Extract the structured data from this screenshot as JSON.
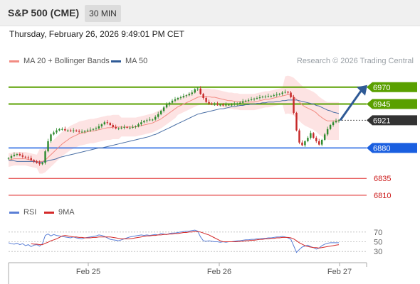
{
  "header": {
    "title": "S&P 500 (CME)",
    "timeframe_label": "30 MIN"
  },
  "timestamp": "Thursday, February 26, 2026 9:49:01 PM CET",
  "legend": {
    "ma20_label": "MA 20 + Bollinger Bands",
    "ma50_label": "MA 50"
  },
  "credit": "Research © 2026 Trading Central",
  "rsi_legend": {
    "rsi_label": "RSI",
    "ma_label": "9MA"
  },
  "colors": {
    "green": "#5aa000",
    "blue": "#1a5fe0",
    "dark": "#333333",
    "red": "#e03030",
    "band": "#fde3e3",
    "ma20": "#f28b82",
    "ma50": "#4a6fa5",
    "rsi": "#5b7fd6",
    "rsi_ma": "#d42a2a",
    "candle_up": "#2e8b2e",
    "candle_down": "#c62828"
  },
  "chart_data": [
    {
      "type": "candlestick",
      "title": "S&P 500 (CME) 30 MIN",
      "ylim": [
        6790,
        6995
      ],
      "x_ticks": [
        "Feb 25",
        "Feb 26",
        "Feb 27"
      ],
      "levels": [
        {
          "value": 6970,
          "label": "6970",
          "style": "green-line"
        },
        {
          "value": 6945,
          "label": "6945",
          "style": "green-line"
        },
        {
          "value": 6921,
          "label": "6921",
          "style": "current-price"
        },
        {
          "value": 6880,
          "label": "6880",
          "style": "blue-line"
        },
        {
          "value": 6835,
          "label": "6835",
          "style": "red-line"
        },
        {
          "value": 6810,
          "label": "6810",
          "style": "red-line"
        }
      ],
      "forecast_arrow": {
        "from": 6921,
        "to": 6970
      },
      "close_series": [
        6865,
        6868,
        6870,
        6871,
        6869,
        6867,
        6866,
        6865,
        6862,
        6860,
        6858,
        6856,
        6858,
        6875,
        6890,
        6900,
        6903,
        6906,
        6908,
        6908,
        6906,
        6906,
        6905,
        6906,
        6905,
        6904,
        6904,
        6905,
        6906,
        6907,
        6908,
        6909,
        6912,
        6915,
        6918,
        6917,
        6914,
        6911,
        6909,
        6909,
        6910,
        6911,
        6910,
        6910,
        6911,
        6912,
        6915,
        6918,
        6920,
        6921,
        6922,
        6922,
        6926,
        6930,
        6935,
        6940,
        6944,
        6947,
        6950,
        6952,
        6954,
        6955,
        6957,
        6958,
        6960,
        6962,
        6967,
        6968,
        6960,
        6954,
        6948,
        6946,
        6945,
        6945,
        6944,
        6944,
        6943,
        6944,
        6944,
        6944,
        6945,
        6946,
        6947,
        6949,
        6950,
        6951,
        6952,
        6953,
        6954,
        6955,
        6956,
        6956,
        6957,
        6957,
        6958,
        6959,
        6960,
        6962,
        6963,
        6962,
        6955,
        6932,
        6906,
        6888,
        6884,
        6890,
        6895,
        6902,
        6895,
        6890,
        6885,
        6892,
        6900,
        6908,
        6914,
        6918,
        6920,
        6921
      ],
      "ma20_series": [
        6862,
        6863,
        6864,
        6864,
        6864,
        6864,
        6864,
        6863,
        6862,
        6861,
        6860,
        6860,
        6860,
        6862,
        6866,
        6870,
        6874,
        6878,
        6882,
        6886,
        6889,
        6892,
        6895,
        6897,
        6899,
        6901,
        6902,
        6903,
        6904,
        6905,
        6905,
        6906,
        6907,
        6908,
        6909,
        6910,
        6910,
        6911,
        6911,
        6911,
        6911,
        6911,
        6911,
        6911,
        6911,
        6911,
        6912,
        6913,
        6914,
        6915,
        6916,
        6917,
        6919,
        6921,
        6923,
        6926,
        6929,
        6932,
        6935,
        6938,
        6941,
        6943,
        6945,
        6947,
        6949,
        6951,
        6953,
        6955,
        6956,
        6956,
        6956,
        6956,
        6955,
        6955,
        6954,
        6953,
        6952,
        6951,
        6950,
        6950,
        6949,
        6949,
        6948,
        6948,
        6948,
        6948,
        6948,
        6948,
        6949,
        6950,
        6951,
        6952,
        6952,
        6953,
        6954,
        6955,
        6956,
        6957,
        6958,
        6959,
        6958,
        6956,
        6952,
        6948,
        6944,
        6941,
        6939,
        6937,
        6935,
        6932,
        6928,
        6925,
        6922,
        6920,
        6920,
        6920,
        6920,
        6920
      ],
      "ma50_series": [
        6862,
        6861,
        6861,
        6860,
        6860,
        6860,
        6860,
        6860,
        6860,
        6860,
        6859,
        6859,
        6859,
        6860,
        6861,
        6862,
        6863,
        6864,
        6866,
        6867,
        6868,
        6869,
        6870,
        6871,
        6872,
        6873,
        6874,
        6875,
        6876,
        6877,
        6878,
        6879,
        6880,
        6880,
        6881,
        6882,
        6883,
        6884,
        6885,
        6886,
        6887,
        6888,
        6889,
        6890,
        6891,
        6892,
        6893,
        6894,
        6895,
        6896,
        6897,
        6899,
        6900,
        6902,
        6904,
        6906,
        6908,
        6910,
        6912,
        6914,
        6916,
        6918,
        6920,
        6922,
        6924,
        6926,
        6928,
        6930,
        6931,
        6932,
        6933,
        6934,
        6935,
        6936,
        6937,
        6938,
        6938,
        6939,
        6940,
        6941,
        6941,
        6942,
        6943,
        6943,
        6944,
        6944,
        6945,
        6945,
        6946,
        6946,
        6947,
        6947,
        6948,
        6948,
        6948,
        6949,
        6949,
        6950,
        6950,
        6951,
        6951,
        6951,
        6951,
        6950,
        6949,
        6948,
        6947,
        6946,
        6945,
        6943,
        6942,
        6940,
        6938,
        6936,
        6935,
        6933,
        6932,
        6931
      ]
    },
    {
      "type": "line",
      "title": "RSI",
      "ylim": [
        20,
        80
      ],
      "y_ticks": [
        70,
        50,
        30
      ],
      "series": [
        {
          "name": "RSI",
          "values": [
            48,
            46,
            45,
            47,
            44,
            46,
            42,
            44,
            40,
            43,
            44,
            41,
            46,
            63,
            66,
            62,
            65,
            63,
            62,
            61,
            60,
            59,
            58,
            60,
            58,
            57,
            56,
            58,
            59,
            60,
            61,
            62,
            64,
            63,
            61,
            58,
            55,
            54,
            53,
            52,
            54,
            56,
            58,
            60,
            61,
            62,
            63,
            64,
            63,
            64,
            63,
            64,
            65,
            64,
            67,
            66,
            65,
            67,
            68,
            68,
            69,
            70,
            71,
            72,
            72,
            73,
            74,
            72,
            60,
            52,
            51,
            52,
            51,
            50,
            50,
            49,
            50,
            49,
            50,
            50,
            51,
            52,
            52,
            53,
            54,
            54,
            55,
            55,
            56,
            56,
            57,
            57,
            58,
            58,
            59,
            60,
            60,
            61,
            60,
            58,
            55,
            42,
            28,
            34,
            39,
            41,
            43,
            40,
            38,
            35,
            37,
            42,
            45,
            47,
            48,
            48,
            48,
            48
          ]
        },
        {
          "name": "9MA",
          "values": [
            null,
            null,
            null,
            null,
            null,
            null,
            null,
            null,
            46,
            45,
            45,
            44,
            44,
            47,
            49,
            52,
            54,
            56,
            59,
            62,
            63,
            62,
            61,
            60,
            60,
            59,
            59,
            58,
            58,
            58,
            59,
            59,
            60,
            60,
            60,
            60,
            60,
            59,
            58,
            57,
            56,
            56,
            56,
            56,
            57,
            58,
            59,
            60,
            61,
            62,
            62,
            63,
            63,
            64,
            64,
            65,
            65,
            66,
            66,
            67,
            67,
            68,
            69,
            69,
            70,
            70,
            71,
            71,
            70,
            68,
            66,
            64,
            61,
            58,
            55,
            52,
            50,
            50,
            50,
            50,
            50,
            50,
            51,
            51,
            52,
            52,
            53,
            53,
            54,
            55,
            55,
            56,
            56,
            57,
            57,
            58,
            58,
            59,
            59,
            59,
            58,
            56,
            52,
            48,
            45,
            42,
            40,
            39,
            38,
            38,
            37,
            38,
            39,
            40,
            41,
            42,
            43,
            44
          ]
        }
      ]
    }
  ]
}
